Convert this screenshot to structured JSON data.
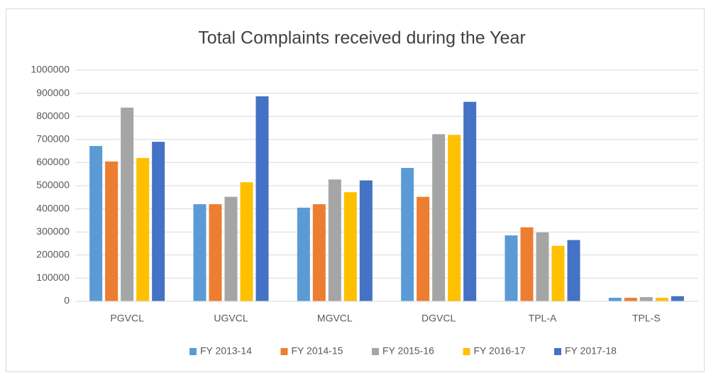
{
  "chart_data": {
    "type": "bar",
    "title": "Total Complaints  received during the Year",
    "categories": [
      "PGVCL",
      "UGVCL",
      "MGVCL",
      "DGVCL",
      "TPL-A",
      "TPL-S"
    ],
    "series": [
      {
        "name": "FY 2013-14",
        "color": "#5b9bd5",
        "values": [
          672000,
          420000,
          405000,
          577000,
          285000,
          15000
        ]
      },
      {
        "name": "FY 2014-15",
        "color": "#ed7d31",
        "values": [
          605000,
          420000,
          420000,
          452000,
          320000,
          15000
        ]
      },
      {
        "name": "FY 2015-16",
        "color": "#a5a5a5",
        "values": [
          838000,
          452000,
          527000,
          723000,
          298000,
          18000
        ]
      },
      {
        "name": "FY 2016-17",
        "color": "#ffc000",
        "values": [
          620000,
          515000,
          472000,
          720000,
          240000,
          15000
        ]
      },
      {
        "name": "FY 2017-18",
        "color": "#4472c4",
        "values": [
          690000,
          887000,
          523000,
          863000,
          265000,
          22000
        ]
      }
    ],
    "ylim": [
      0,
      1000000
    ],
    "yticks": [
      0,
      100000,
      200000,
      300000,
      400000,
      500000,
      600000,
      700000,
      800000,
      900000,
      1000000
    ],
    "grid": true,
    "legend": "bottom"
  }
}
